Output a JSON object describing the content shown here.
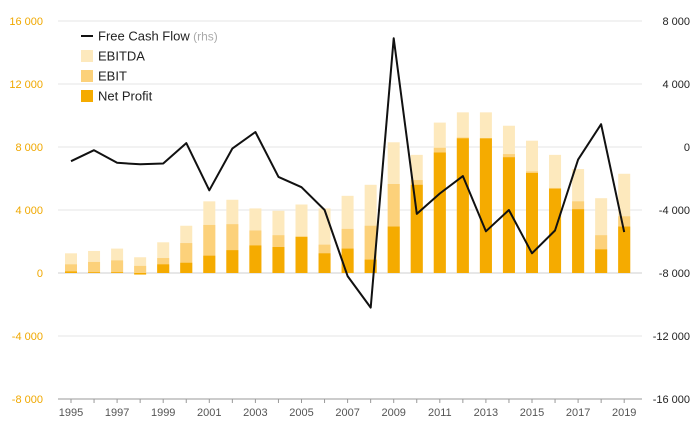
{
  "chart_data": {
    "type": "bar",
    "subtype": "stacked-bar-with-line",
    "x": [
      1995,
      1996,
      1997,
      1998,
      1999,
      2000,
      2001,
      2002,
      2003,
      2004,
      2005,
      2006,
      2007,
      2008,
      2009,
      2010,
      2011,
      2012,
      2013,
      2014,
      2015,
      2016,
      2017,
      2018,
      2019
    ],
    "x_tick_labels": [
      "1995",
      "1997",
      "1999",
      "2001",
      "2003",
      "2005",
      "2007",
      "2009",
      "2011",
      "2013",
      "2015",
      "2017",
      "2019"
    ],
    "y_left": {
      "ylim": [
        -8000,
        16000
      ],
      "ticks": [
        -8000,
        -4000,
        0,
        4000,
        8000,
        12000,
        16000
      ],
      "tick_labels": [
        "-8 000",
        "-4 000",
        "0",
        "4 000",
        "8 000",
        "12 000",
        "16 000"
      ]
    },
    "y_right": {
      "ylim": [
        -16000,
        8000
      ],
      "ticks": [
        -16000,
        -12000,
        -8000,
        -4000,
        0,
        4000,
        8000
      ],
      "tick_labels": [
        "-16 000",
        "-12 000",
        "-8 000",
        "-4 000",
        "0",
        "4 000",
        "8 000"
      ]
    },
    "series": [
      {
        "name": "EBITDA",
        "kind": "bar",
        "axis": "left",
        "color": "#fde9bd",
        "values": [
          1250,
          1400,
          1550,
          1000,
          1950,
          3000,
          4550,
          4650,
          4100,
          3950,
          4350,
          4100,
          4900,
          5600,
          8300,
          7500,
          9550,
          10200,
          10200,
          9350,
          8400,
          7500,
          6600,
          4750,
          6300
        ]
      },
      {
        "name": "EBIT",
        "kind": "bar",
        "axis": "left",
        "color": "#fcd17a",
        "values": [
          550,
          700,
          800,
          450,
          950,
          1900,
          3050,
          3100,
          2700,
          2400,
          2300,
          1800,
          2800,
          3000,
          5650,
          5900,
          7950,
          8600,
          8550,
          7550,
          6450,
          5400,
          4550,
          2400,
          3600
        ]
      },
      {
        "name": "Net Profit",
        "kind": "bar",
        "axis": "left",
        "color": "#f5ab00",
        "values": [
          100,
          50,
          50,
          -100,
          550,
          650,
          1100,
          1450,
          1750,
          1650,
          2300,
          1250,
          1550,
          850,
          2950,
          5600,
          7650,
          8550,
          8550,
          7350,
          6350,
          5350,
          4050,
          1500,
          2950
        ]
      },
      {
        "name": "Free Cash Flow",
        "name_suffix": "(rhs)",
        "kind": "line",
        "axis": "right",
        "color": "#111111",
        "values": [
          -900,
          -200,
          -1000,
          -1100,
          -1050,
          250,
          -2750,
          -100,
          950,
          -1900,
          -2550,
          -4000,
          -8200,
          -10200,
          6900,
          -4250,
          -2950,
          -1850,
          -5350,
          -4000,
          -6750,
          -5300,
          -800,
          1450,
          -5400
        ]
      }
    ],
    "legend": {
      "position": "top-left",
      "entries": [
        "Free Cash Flow",
        "EBITDA",
        "EBIT",
        "Net Profit"
      ]
    },
    "grid": true,
    "colors": {
      "left_axis_text": "#f0a800",
      "right_axis_text": "#222222",
      "grid": "#e6e6e6",
      "zero_line": "#cfcfcf"
    }
  }
}
